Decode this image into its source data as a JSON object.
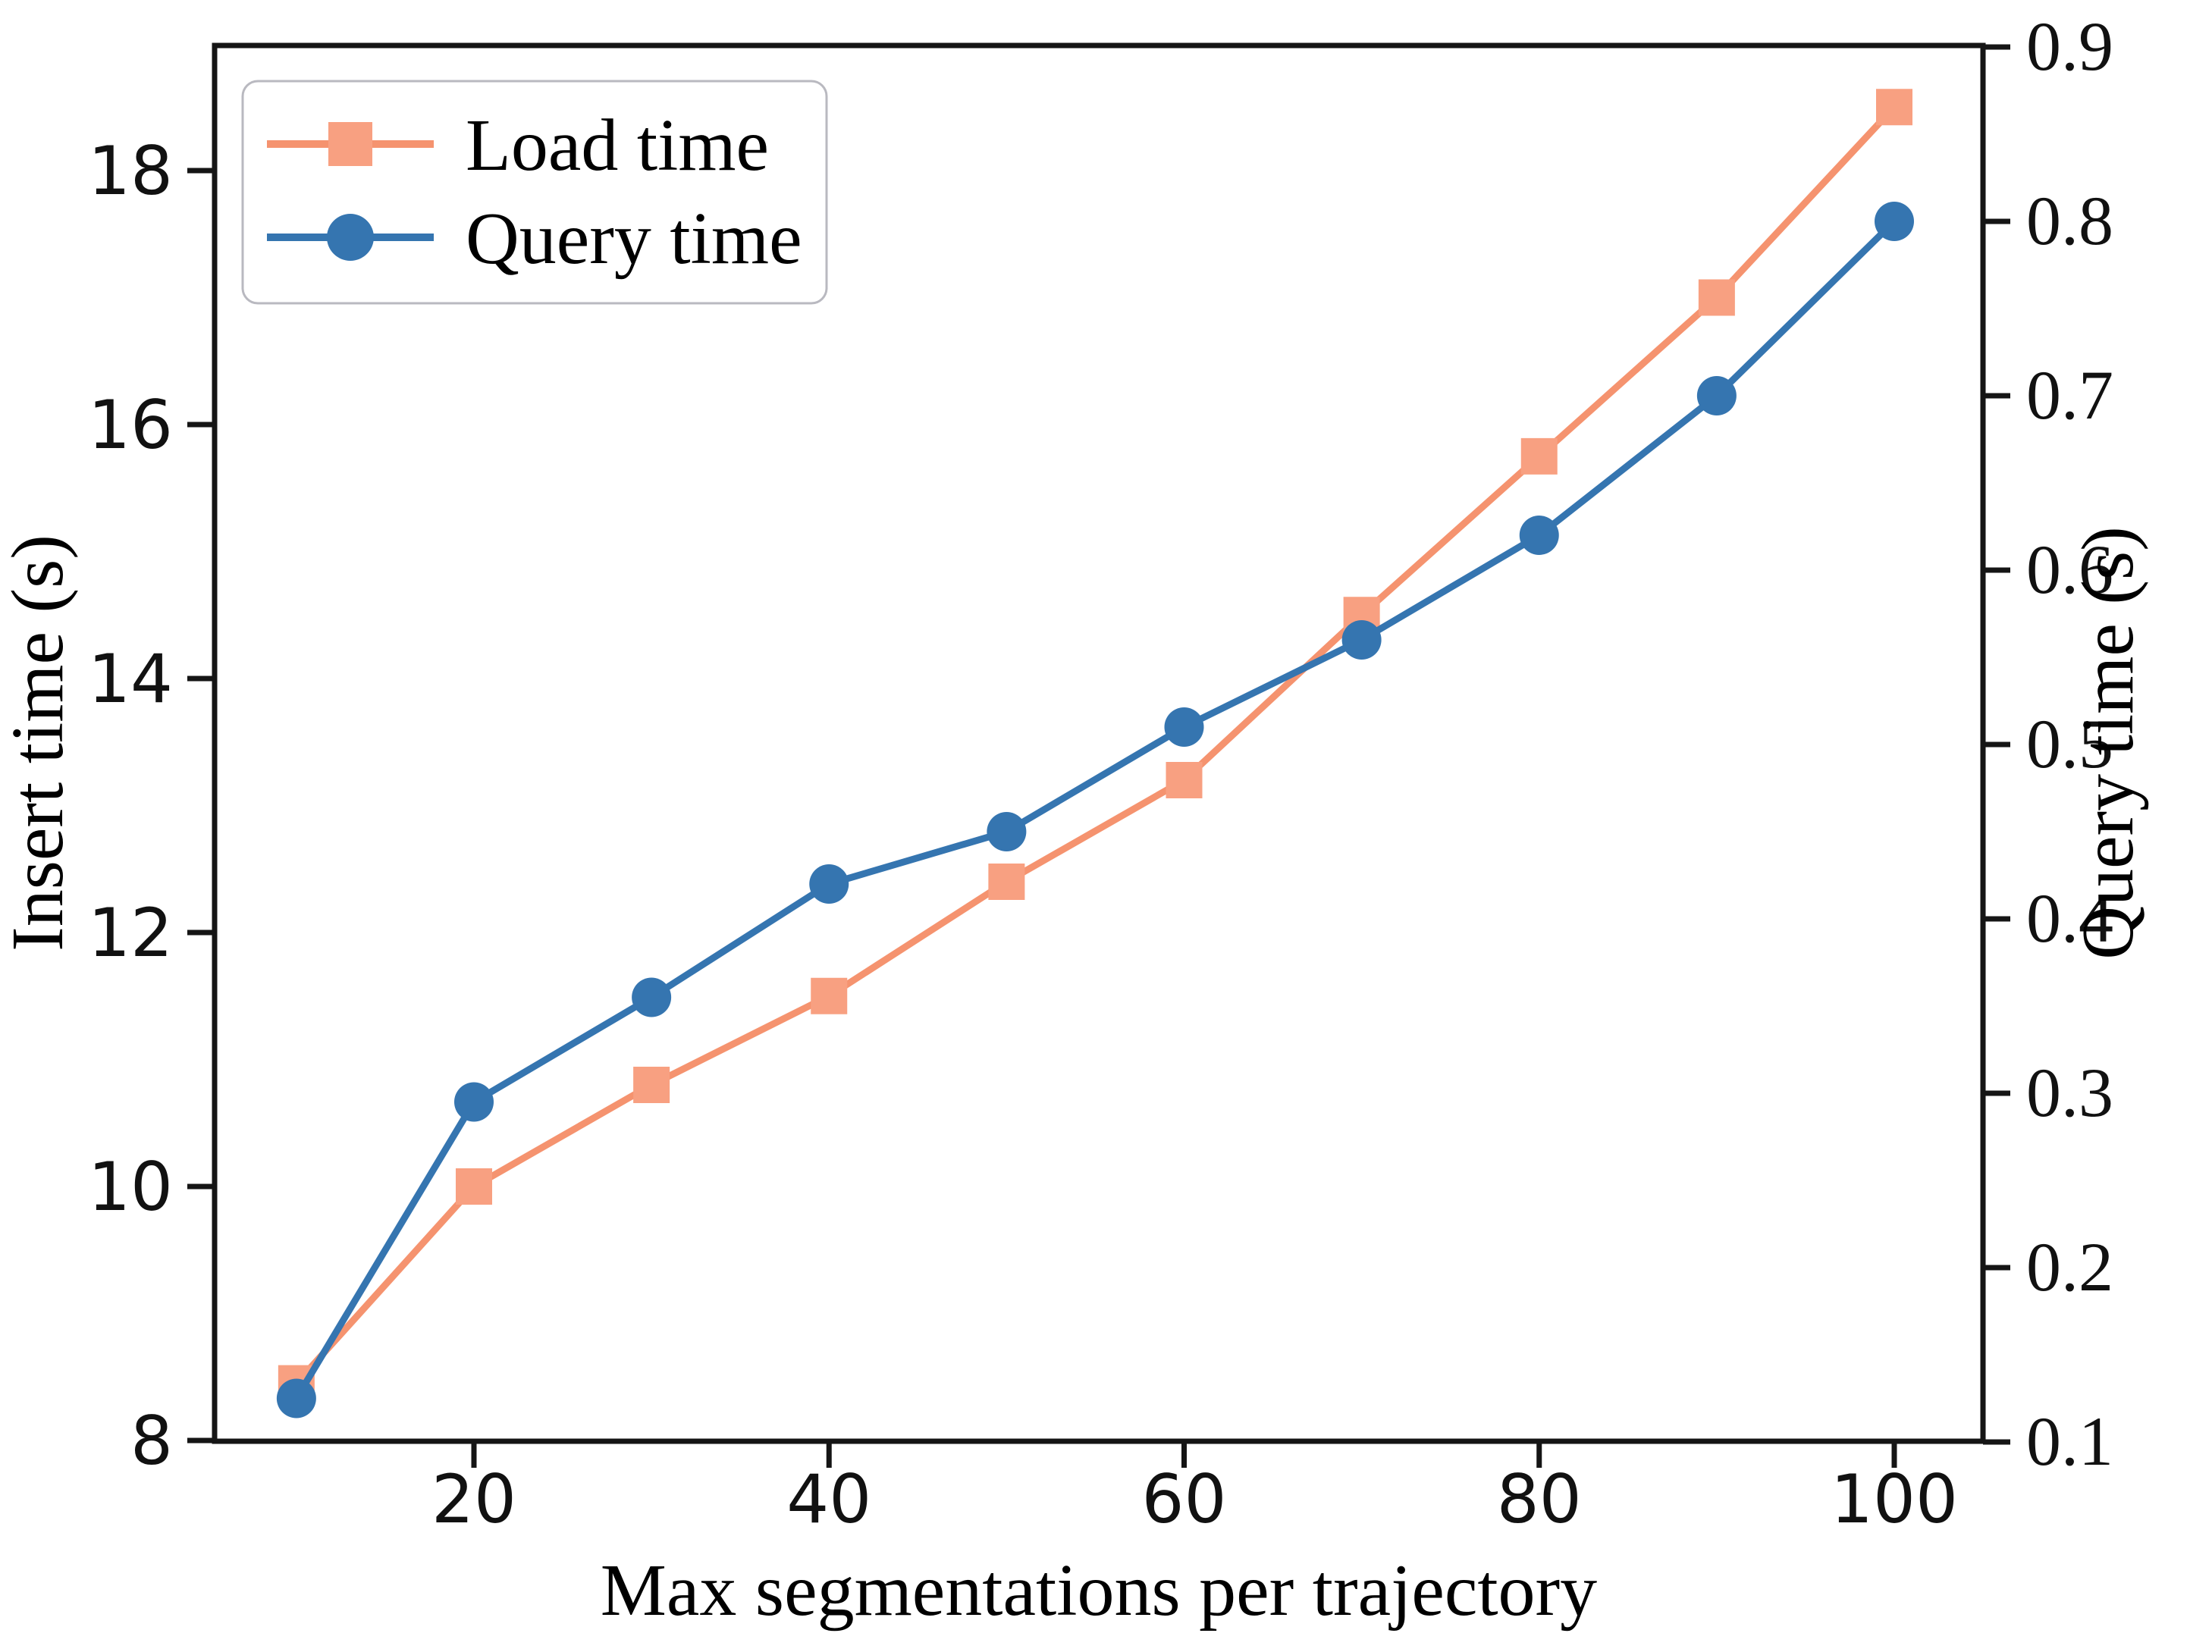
{
  "chart_data": {
    "type": "line",
    "title": "",
    "xlabel": "Max segmentations per trajectory",
    "ylabel_left": "Insert time (s)",
    "ylabel_right": "Query time (s)",
    "x": [
      10,
      20,
      30,
      40,
      50,
      60,
      70,
      80,
      90,
      100
    ],
    "x_ticks": [
      20,
      40,
      60,
      80,
      100
    ],
    "y_left_ticks": [
      8,
      10,
      12,
      14,
      16,
      18
    ],
    "y_right_ticks": [
      0.1,
      0.2,
      0.3,
      0.4,
      0.5,
      0.6,
      0.7,
      0.8,
      0.9
    ],
    "xlim": [
      5.5,
      104.5
    ],
    "ylim_left": [
      8,
      19
    ],
    "ylim_right": [
      0.1,
      0.9
    ],
    "grid": false,
    "legend_position": "upper left",
    "series": [
      {
        "name": "Load time",
        "axis": "left",
        "marker": "square",
        "color": "#F5936F",
        "marker_color": "#F8A081",
        "values": [
          8.45,
          10.0,
          10.8,
          11.5,
          12.4,
          13.2,
          14.5,
          15.75,
          17.0,
          18.5
        ]
      },
      {
        "name": "Query time",
        "axis": "right",
        "marker": "circle",
        "color": "#3575B0",
        "marker_color": "#3575B0",
        "values": [
          0.125,
          0.295,
          0.355,
          0.42,
          0.45,
          0.51,
          0.56,
          0.62,
          0.7,
          0.8
        ]
      }
    ]
  },
  "colors": {
    "background": "#ffffff",
    "spine": "#151515",
    "tick_text": "#111111",
    "legend_border": "#b9b9c0",
    "load_series": "#F5936F",
    "query_series": "#3575B0"
  }
}
